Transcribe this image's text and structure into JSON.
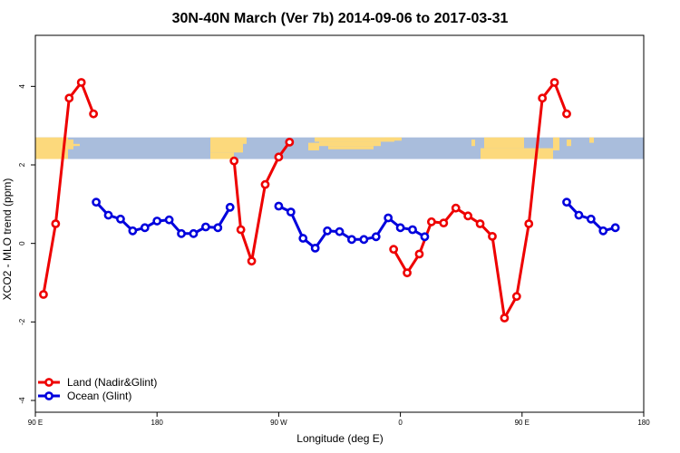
{
  "chart_data": {
    "type": "line",
    "title": "30N-40N March (Ver 7b)   2014-09-06 to 2017-03-31",
    "xlabel": "Longitude (deg E)",
    "ylabel": "XCO2 - MLO trend (ppm)",
    "xlim": [
      90,
      540
    ],
    "ylim": [
      -4.3,
      5.3
    ],
    "x_ticks": [
      {
        "value": 90,
        "label": "90 E"
      },
      {
        "value": 180,
        "label": "180"
      },
      {
        "value": 270,
        "label": "90 W"
      },
      {
        "value": 360,
        "label": "0"
      },
      {
        "value": 450,
        "label": "90 E"
      },
      {
        "value": 540,
        "label": "180"
      }
    ],
    "y_ticks": [
      {
        "value": -4,
        "label": "-4"
      },
      {
        "value": -2,
        "label": "-2"
      },
      {
        "value": 0,
        "label": "0"
      },
      {
        "value": 2,
        "label": "2"
      },
      {
        "value": 4,
        "label": "4"
      }
    ],
    "grid": false,
    "legend_position": "bottom-left",
    "map_strip": {
      "y_range": [
        2.15,
        2.7
      ],
      "ocean_color": "#a9bddc",
      "land_color": "#fcd97c"
    },
    "series": [
      {
        "name": "Land (Nadir&Glint)",
        "color": "#ee0000",
        "segments": [
          [
            [
              96,
              -1.3
            ],
            [
              105,
              0.5
            ],
            [
              115,
              3.7
            ],
            [
              124,
              4.1
            ],
            [
              133,
              3.3
            ]
          ],
          [
            [
              237,
              2.1
            ],
            [
              242,
              0.35
            ],
            [
              250,
              -0.45
            ],
            [
              260,
              1.5
            ],
            [
              270,
              2.2
            ],
            [
              278,
              2.58
            ]
          ],
          [
            [
              355,
              -0.15
            ],
            [
              365,
              -0.75
            ],
            [
              374,
              -0.27
            ],
            [
              383,
              0.55
            ],
            [
              392,
              0.52
            ],
            [
              401,
              0.9
            ],
            [
              410,
              0.7
            ],
            [
              419,
              0.5
            ],
            [
              428,
              0.18
            ],
            [
              437,
              -1.9
            ],
            [
              446,
              -1.35
            ],
            [
              455,
              0.5
            ],
            [
              465,
              3.7
            ],
            [
              474,
              4.1
            ],
            [
              483,
              3.3
            ]
          ]
        ]
      },
      {
        "name": "Ocean (Glint)",
        "color": "#0000dd",
        "segments": [
          [
            [
              135,
              1.05
            ],
            [
              144,
              0.72
            ],
            [
              153,
              0.62
            ],
            [
              162,
              0.32
            ],
            [
              171,
              0.4
            ],
            [
              180,
              0.57
            ],
            [
              189,
              0.6
            ],
            [
              198,
              0.25
            ],
            [
              207,
              0.25
            ],
            [
              216,
              0.42
            ],
            [
              225,
              0.4
            ],
            [
              234,
              0.92
            ]
          ],
          [
            [
              270,
              0.95
            ],
            [
              279,
              0.8
            ],
            [
              288,
              0.13
            ],
            [
              297,
              -0.12
            ],
            [
              306,
              0.32
            ],
            [
              315,
              0.3
            ],
            [
              324,
              0.1
            ],
            [
              333,
              0.1
            ],
            [
              342,
              0.17
            ],
            [
              351,
              0.65
            ],
            [
              360,
              0.4
            ],
            [
              369,
              0.35
            ],
            [
              378,
              0.17
            ]
          ],
          [
            [
              483,
              1.05
            ],
            [
              492,
              0.72
            ],
            [
              501,
              0.62
            ],
            [
              510,
              0.32
            ],
            [
              519,
              0.4
            ]
          ]
        ]
      }
    ]
  }
}
